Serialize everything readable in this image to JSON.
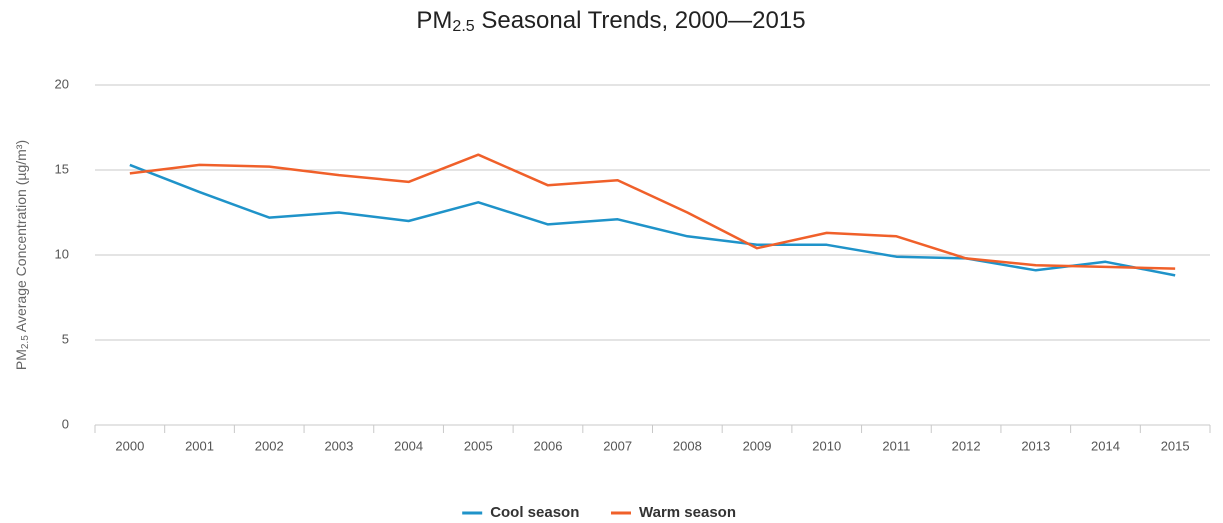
{
  "chart_data": {
    "type": "line",
    "title": [
      "PM",
      "2.5",
      " Seasonal Trends, 2000—2015"
    ],
    "y_label": [
      "PM",
      "2.5",
      " Average Concentration (µg/m³)"
    ],
    "categories": [
      "2000",
      "2001",
      "2002",
      "2003",
      "2004",
      "2005",
      "2006",
      "2007",
      "2008",
      "2009",
      "2010",
      "2011",
      "2012",
      "2013",
      "2014",
      "2015"
    ],
    "series": [
      {
        "name": "Cool season",
        "color": "#1f93c9",
        "values": [
          15.3,
          13.7,
          12.2,
          12.5,
          12.0,
          13.1,
          11.8,
          12.1,
          11.1,
          10.6,
          10.6,
          9.9,
          9.8,
          9.1,
          9.6,
          8.8
        ]
      },
      {
        "name": "Warm season",
        "color": "#f0602a",
        "values": [
          14.8,
          15.3,
          15.2,
          14.7,
          14.3,
          15.9,
          14.1,
          14.4,
          12.5,
          10.4,
          11.3,
          11.1,
          9.8,
          9.4,
          9.3,
          9.2
        ]
      }
    ],
    "ylim": [
      0,
      20
    ],
    "yticks": [
      0,
      5,
      10,
      15,
      20
    ],
    "grid": true,
    "legend": "bottom"
  }
}
